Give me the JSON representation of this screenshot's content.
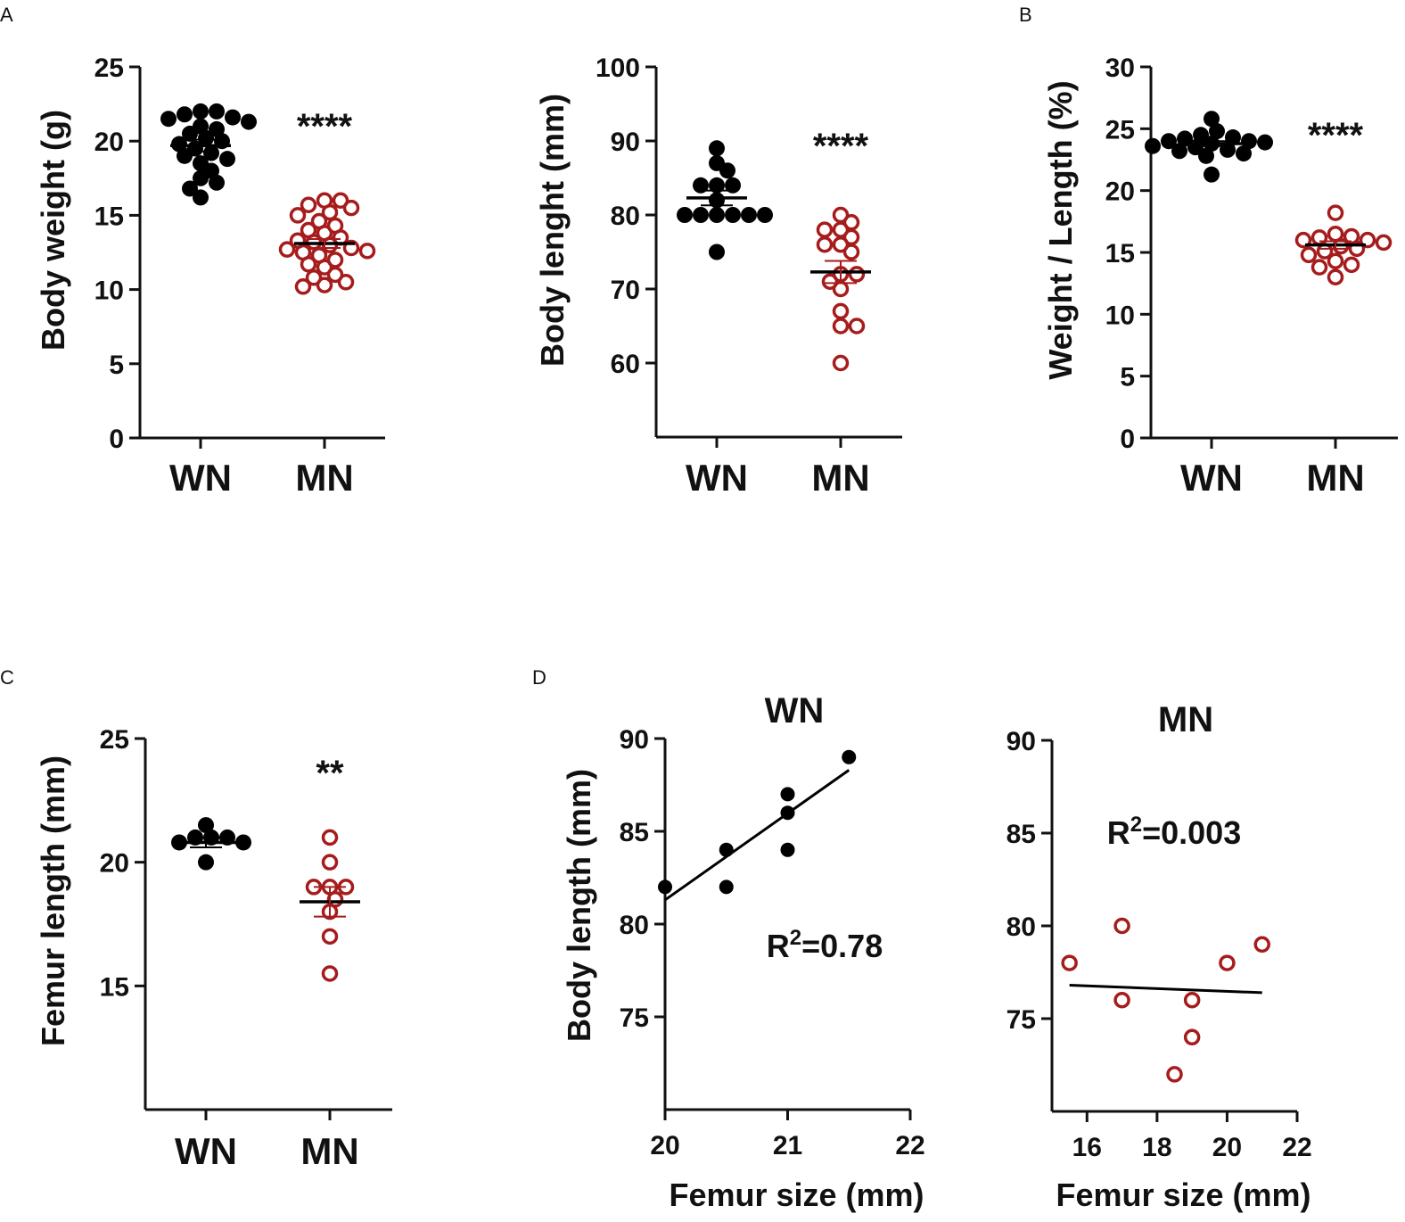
{
  "colors": {
    "wn": "#000000",
    "mn": "#a61c1c",
    "axis": "#111111"
  },
  "panel_labels": [
    "A",
    "B",
    "C",
    "D"
  ],
  "chart_data": [
    {
      "id": "body-weight",
      "type": "scatter",
      "ylabel": "Body weight (g)",
      "ylim": [
        0,
        25
      ],
      "yticks": [
        0,
        5,
        10,
        15,
        20,
        25
      ],
      "categories": [
        "WN",
        "MN"
      ],
      "significance": "****",
      "series": [
        {
          "name": "WN",
          "values": [
            22,
            22,
            21.8,
            21.6,
            21.5,
            21.3,
            21,
            20.8,
            20.5,
            20.2,
            20,
            19.8,
            19.5,
            19.2,
            19,
            18.8,
            18.5,
            18,
            17.5,
            17.2,
            16.8,
            16.2
          ],
          "mean": 19.7,
          "sem": 0.4
        },
        {
          "name": "MN",
          "values": [
            16,
            16,
            15.7,
            15.5,
            15.2,
            15,
            14.6,
            14.3,
            14,
            13.8,
            13.5,
            13.3,
            13.2,
            13,
            12.8,
            12.7,
            12.6,
            12.5,
            12.3,
            12,
            11.7,
            11.5,
            11,
            10.8,
            10.5,
            10.3,
            10.2
          ],
          "mean": 13.1,
          "sem": 0.3
        }
      ]
    },
    {
      "id": "body-length",
      "type": "scatter",
      "ylabel": "Body lenght (mm)",
      "ylim": [
        50,
        100
      ],
      "yticks": [
        60,
        70,
        80,
        90,
        100
      ],
      "categories": [
        "WN",
        "MN"
      ],
      "significance": "****",
      "series": [
        {
          "name": "WN",
          "values": [
            89,
            87,
            86,
            84,
            84,
            84,
            82,
            80,
            80,
            80,
            80,
            80,
            80,
            75
          ],
          "mean": 82.3,
          "sem": 1.0
        },
        {
          "name": "MN",
          "values": [
            80,
            79,
            78,
            78,
            77,
            76,
            76,
            75,
            72,
            72,
            71,
            70,
            67,
            65,
            65,
            60
          ],
          "mean": 72.3,
          "sem": 1.5
        }
      ]
    },
    {
      "id": "weight-length",
      "type": "scatter",
      "ylabel": "Weight / Length (%)",
      "ylim": [
        0,
        30
      ],
      "yticks": [
        0,
        5,
        10,
        15,
        20,
        25,
        30
      ],
      "categories": [
        "WN",
        "MN"
      ],
      "significance": "****",
      "series": [
        {
          "name": "WN",
          "values": [
            25.8,
            24.8,
            24.5,
            24.3,
            24.2,
            24,
            24,
            23.9,
            23.8,
            23.6,
            23.5,
            23.3,
            23.2,
            23,
            22.8,
            21.3
          ],
          "mean": 23.8,
          "sem": 0.2
        },
        {
          "name": "MN",
          "values": [
            18.2,
            16.5,
            16.3,
            16.2,
            16,
            16,
            15.8,
            15.5,
            15.3,
            15.1,
            14.8,
            14.3,
            14,
            13.8,
            13
          ],
          "mean": 15.6,
          "sem": 0.3
        }
      ]
    },
    {
      "id": "femur-length",
      "type": "scatter",
      "ylabel": "Femur length (mm)",
      "ylim": [
        10,
        25
      ],
      "yticks": [
        15,
        20,
        25
      ],
      "categories": [
        "WN",
        "MN"
      ],
      "significance": "**",
      "series": [
        {
          "name": "WN",
          "values": [
            21.5,
            21,
            21,
            21,
            20.8,
            20.8,
            20
          ],
          "mean": 20.8,
          "sem": 0.2
        },
        {
          "name": "MN",
          "values": [
            21,
            20,
            19,
            19,
            19,
            18.5,
            18,
            17,
            15.5
          ],
          "mean": 18.4,
          "sem": 0.6
        }
      ]
    },
    {
      "id": "regression-wn",
      "type": "scatter",
      "title": "WN",
      "xlabel": "Femur size (mm)",
      "ylabel": "Body length (mm)",
      "xlim": [
        20,
        22
      ],
      "xticks": [
        20,
        21,
        22
      ],
      "ylim": [
        70,
        90
      ],
      "yticks": [
        75,
        80,
        85,
        90
      ],
      "r2_label": "R",
      "r2_value": "=0.78",
      "points": [
        [
          20,
          82
        ],
        [
          20.5,
          84
        ],
        [
          20.5,
          82
        ],
        [
          21,
          87
        ],
        [
          21,
          86
        ],
        [
          21,
          84
        ],
        [
          21.5,
          89
        ]
      ],
      "fit": [
        [
          20,
          81.3
        ],
        [
          21.5,
          88.3
        ]
      ],
      "series_name": "WN"
    },
    {
      "id": "regression-mn",
      "type": "scatter",
      "title": "MN",
      "xlabel": "Femur size (mm)",
      "ylabel": "",
      "xlim": [
        15,
        22
      ],
      "xticks": [
        16,
        18,
        20,
        22
      ],
      "ylim": [
        70,
        90
      ],
      "yticks": [
        75,
        80,
        85,
        90
      ],
      "r2_label": "R",
      "r2_value": "=0.003",
      "points": [
        [
          15.5,
          78
        ],
        [
          17,
          80
        ],
        [
          17,
          76
        ],
        [
          18.5,
          72
        ],
        [
          19,
          76
        ],
        [
          19,
          74
        ],
        [
          20,
          78
        ],
        [
          21,
          79
        ]
      ],
      "fit": [
        [
          15.5,
          76.8
        ],
        [
          21,
          76.4
        ]
      ],
      "series_name": "MN"
    }
  ]
}
